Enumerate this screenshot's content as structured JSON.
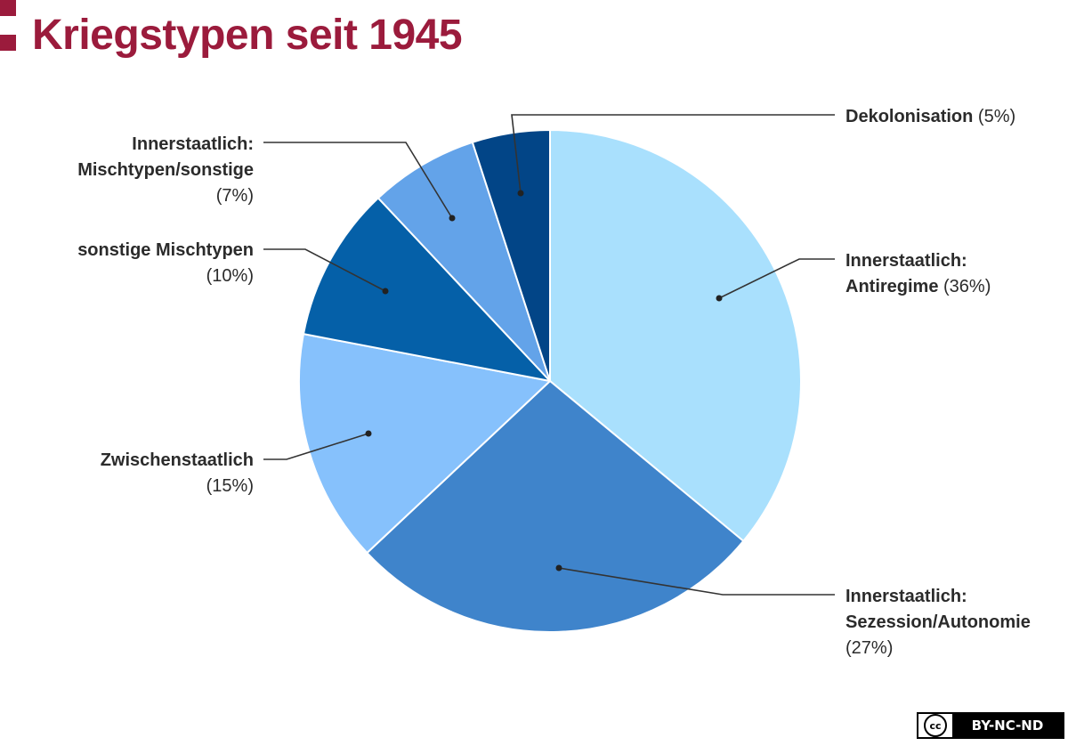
{
  "title": "Kriegstypen seit 1945",
  "colors": {
    "accent": "#9b1b3c"
  },
  "license": {
    "icon": "creative-commons-icon",
    "icon_text": "cc",
    "label": "BY-NC-ND"
  },
  "chart_data": {
    "type": "pie",
    "title": "Kriegstypen seit 1945",
    "unit": "%",
    "start_angle_deg": 0,
    "direction": "clockwise",
    "slices": [
      {
        "label_lines": [
          "Innerstaatlich:",
          "Antiregime"
        ],
        "value": 36,
        "pct_text": "(36%)",
        "color": "#a9e0fd"
      },
      {
        "label_lines": [
          "Innerstaatlich:",
          "Sezession/Autonomie"
        ],
        "value": 27,
        "pct_text": "(27%)",
        "color": "#3f84cb"
      },
      {
        "label_lines": [
          "Zwischenstaatlich"
        ],
        "value": 15,
        "pct_text": "(15%)",
        "color": "#86c1fc"
      },
      {
        "label_lines": [
          "sonstige Mischtypen"
        ],
        "value": 10,
        "pct_text": "(10%)",
        "color": "#0560a8"
      },
      {
        "label_lines": [
          "Innerstaatlich:",
          "Mischtypen/sonstige"
        ],
        "value": 7,
        "pct_text": "(7%)",
        "color": "#63a3e9"
      },
      {
        "label_lines": [
          "Dekolonisation"
        ],
        "value": 5,
        "pct_text": "(5%)",
        "color": "#024587"
      }
    ]
  }
}
